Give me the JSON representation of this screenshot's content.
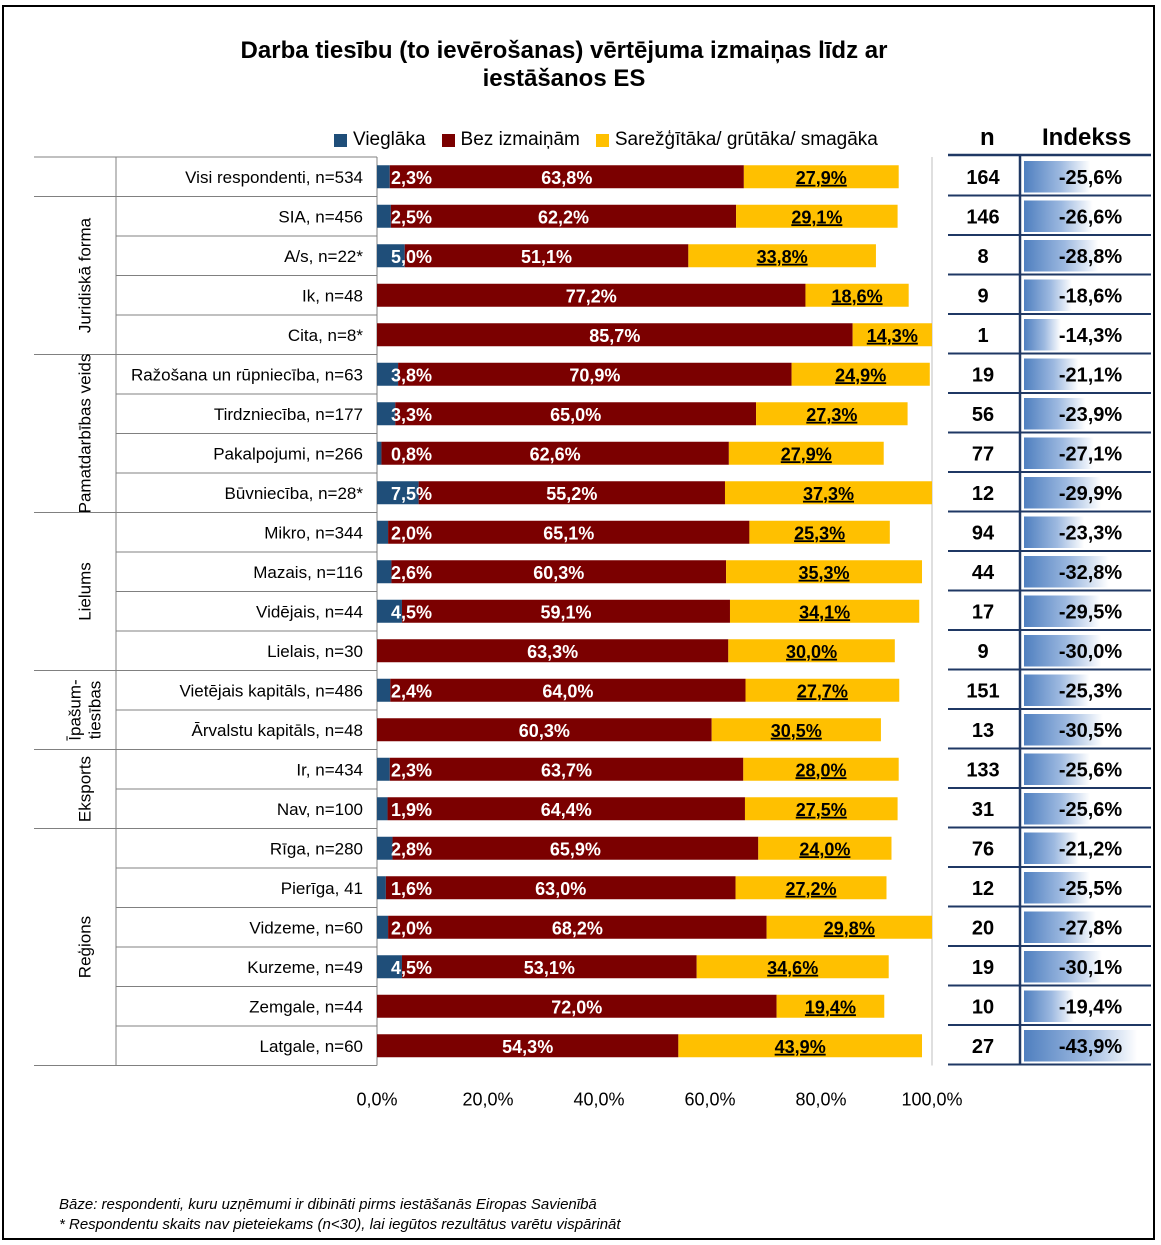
{
  "chart_data": {
    "type": "bar",
    "stacked": true,
    "orientation": "horizontal",
    "title": "Darba tiesību (to ievērošanas) vērtējuma izmaiņas līdz ar iestāšanos ES",
    "title_lines": [
      "Darba tiesību (to ievērošanas) vērtējuma izmaiņas līdz ar",
      "iestāšanos ES"
    ],
    "legend": [
      "Vieglāka",
      "Bez izmaiņām",
      "Sarežģītāka/ grūtāka/ smagāka"
    ],
    "series_colors": [
      "#1F4E79",
      "#7B0000",
      "#FFC000"
    ],
    "xlim": [
      0,
      100
    ],
    "x_ticks": [
      "0,0%",
      "20,0%",
      "40,0%",
      "60,0%",
      "80,0%",
      "100,0%"
    ],
    "n_header": "n",
    "index_header": "Indekss",
    "groups": [
      {
        "label": "",
        "start": 0,
        "end": 0
      },
      {
        "label": "Juridiskā forma",
        "start": 1,
        "end": 4
      },
      {
        "label": "Pamatdarbības veids",
        "start": 5,
        "end": 8
      },
      {
        "label": "Lielums",
        "start": 9,
        "end": 12
      },
      {
        "label": "Īpašum-tiesības",
        "label_lines": [
          "Īpašum-",
          "tiesības"
        ],
        "start": 13,
        "end": 14
      },
      {
        "label": "Eksports",
        "start": 15,
        "end": 16
      },
      {
        "label": "Reģions",
        "start": 17,
        "end": 22
      }
    ],
    "rows": [
      {
        "label": "Visi respondenti, n=534",
        "values": [
          2.3,
          63.8,
          27.9
        ],
        "labels": [
          "2,3%",
          "63,8%",
          "27,9%"
        ],
        "n": "164",
        "index": "-25,6%",
        "index_value": -25.6
      },
      {
        "label": "SIA, n=456",
        "values": [
          2.5,
          62.2,
          29.1
        ],
        "labels": [
          "2,5%",
          "62,2%",
          "29,1%"
        ],
        "n": "146",
        "index": "-26,6%",
        "index_value": -26.6
      },
      {
        "label": "A/s, n=22*",
        "values": [
          5.0,
          51.1,
          33.8
        ],
        "labels": [
          "5,0%",
          "51,1%",
          "33,8%"
        ],
        "n": "8",
        "index": "-28,8%",
        "index_value": -28.8
      },
      {
        "label": "Ik, n=48",
        "values": [
          0,
          77.2,
          18.6
        ],
        "labels": [
          "",
          "77,2%",
          "18,6%"
        ],
        "n": "9",
        "index": "-18,6%",
        "index_value": -18.6
      },
      {
        "label": "Cita, n=8*",
        "values": [
          0,
          85.7,
          14.3
        ],
        "labels": [
          "",
          "85,7%",
          "14,3%"
        ],
        "n": "1",
        "index": "-14,3%",
        "index_value": -14.3
      },
      {
        "label": "Ražošana un rūpniecība, n=63",
        "values": [
          3.8,
          70.9,
          24.9
        ],
        "labels": [
          "3,8%",
          "70,9%",
          "24,9%"
        ],
        "n": "19",
        "index": "-21,1%",
        "index_value": -21.1
      },
      {
        "label": "Tirdzniecība, n=177",
        "values": [
          3.3,
          65.0,
          27.3
        ],
        "labels": [
          "3,3%",
          "65,0%",
          "27,3%"
        ],
        "n": "56",
        "index": "-23,9%",
        "index_value": -23.9
      },
      {
        "label": "Pakalpojumi, n=266",
        "values": [
          0.8,
          62.6,
          27.9
        ],
        "labels": [
          "0,8%",
          "62,6%",
          "27,9%"
        ],
        "n": "77",
        "index": "-27,1%",
        "index_value": -27.1
      },
      {
        "label": "Būvniecība, n=28*",
        "values": [
          7.5,
          55.2,
          37.3
        ],
        "labels": [
          "7,5%",
          "55,2%",
          "37,3%"
        ],
        "n": "12",
        "index": "-29,9%",
        "index_value": -29.9
      },
      {
        "label": "Mikro, n=344",
        "values": [
          2.0,
          65.1,
          25.3
        ],
        "labels": [
          "2,0%",
          "65,1%",
          "25,3%"
        ],
        "n": "94",
        "index": "-23,3%",
        "index_value": -23.3
      },
      {
        "label": "Mazais, n=116",
        "values": [
          2.6,
          60.3,
          35.3
        ],
        "labels": [
          "2,6%",
          "60,3%",
          "35,3%"
        ],
        "n": "44",
        "index": "-32,8%",
        "index_value": -32.8
      },
      {
        "label": "Vidējais, n=44",
        "values": [
          4.5,
          59.1,
          34.1
        ],
        "labels": [
          "4,5%",
          "59,1%",
          "34,1%"
        ],
        "n": "17",
        "index": "-29,5%",
        "index_value": -29.5
      },
      {
        "label": "Lielais, n=30",
        "values": [
          0,
          63.3,
          30.0
        ],
        "labels": [
          "",
          "63,3%",
          "30,0%"
        ],
        "n": "9",
        "index": "-30,0%",
        "index_value": -30.0
      },
      {
        "label": "Vietējais kapitāls, n=486",
        "values": [
          2.4,
          64.0,
          27.7
        ],
        "labels": [
          "2,4%",
          "64,0%",
          "27,7%"
        ],
        "n": "151",
        "index": "-25,3%",
        "index_value": -25.3
      },
      {
        "label": "Ārvalstu kapitāls, n=48",
        "values": [
          0,
          60.3,
          30.5
        ],
        "labels": [
          "",
          "60,3%",
          "30,5%"
        ],
        "n": "13",
        "index": "-30,5%",
        "index_value": -30.5
      },
      {
        "label": "Ir, n=434",
        "values": [
          2.3,
          63.7,
          28.0
        ],
        "labels": [
          "2,3%",
          "63,7%",
          "28,0%"
        ],
        "n": "133",
        "index": "-25,6%",
        "index_value": -25.6
      },
      {
        "label": "Nav, n=100",
        "values": [
          1.9,
          64.4,
          27.5
        ],
        "labels": [
          "1,9%",
          "64,4%",
          "27,5%"
        ],
        "n": "31",
        "index": "-25,6%",
        "index_value": -25.6
      },
      {
        "label": "Rīga, n=280",
        "values": [
          2.8,
          65.9,
          24.0
        ],
        "labels": [
          "2,8%",
          "65,9%",
          "24,0%"
        ],
        "n": "76",
        "index": "-21,2%",
        "index_value": -21.2
      },
      {
        "label": "Pierīga, 41",
        "values": [
          1.6,
          63.0,
          27.2
        ],
        "labels": [
          "1,6%",
          "63,0%",
          "27,2%"
        ],
        "n": "12",
        "index": "-25,5%",
        "index_value": -25.5
      },
      {
        "label": "Vidzeme, n=60",
        "values": [
          2.0,
          68.2,
          29.8
        ],
        "labels": [
          "2,0%",
          "68,2%",
          "29,8%"
        ],
        "n": "20",
        "index": "-27,8%",
        "index_value": -27.8
      },
      {
        "label": "Kurzeme, n=49",
        "values": [
          4.5,
          53.1,
          34.6
        ],
        "labels": [
          "4,5%",
          "53,1%",
          "34,6%"
        ],
        "n": "19",
        "index": "-30,1%",
        "index_value": -30.1
      },
      {
        "label": "Zemgale, n=44",
        "values": [
          0,
          72.0,
          19.4
        ],
        "labels": [
          "",
          "72,0%",
          "19,4%"
        ],
        "n": "10",
        "index": "-19,4%",
        "index_value": -19.4
      },
      {
        "label": "Latgale, n=60",
        "values": [
          0,
          54.3,
          43.9
        ],
        "labels": [
          "",
          "54,3%",
          "43,9%"
        ],
        "n": "27",
        "index": "-43,9%",
        "index_value": -43.9
      }
    ]
  },
  "footnotes": [
    "Bāze:  respondenti, kuru uzņēmumi ir dibināti pirms iestāšanās Eiropas Savienībā",
    "* Respondentu skaits nav pieteiekams (n<30), lai iegūtos rezultātus varētu vispārināt"
  ]
}
